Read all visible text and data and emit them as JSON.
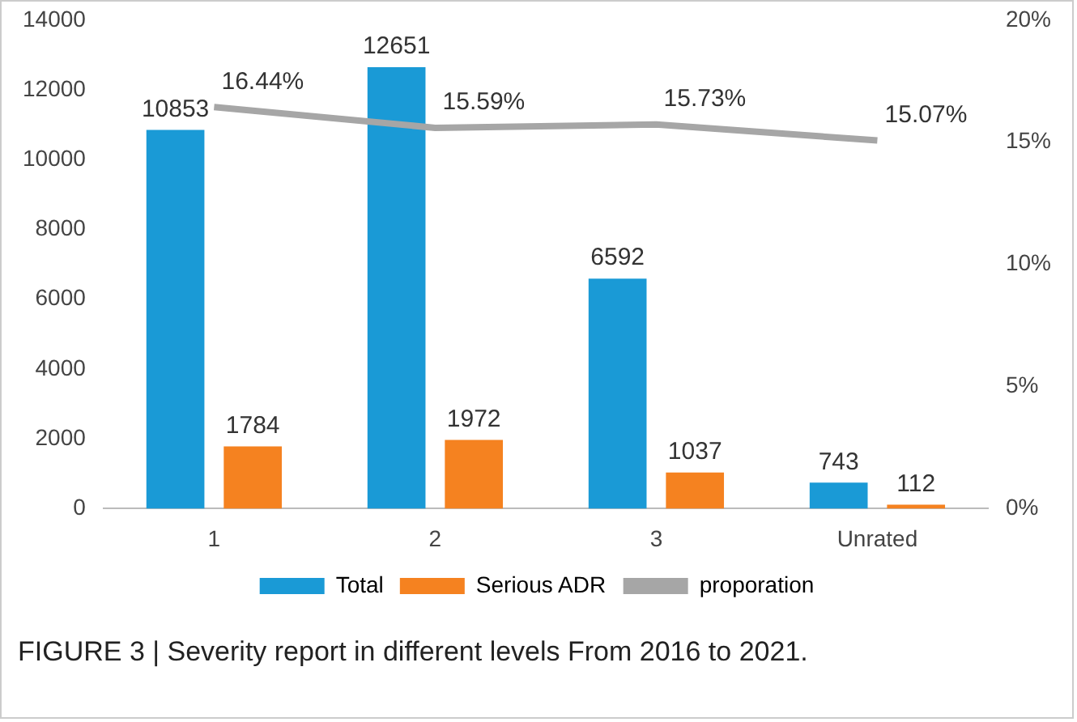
{
  "chart_data": {
    "type": "bar",
    "categories": [
      "1",
      "2",
      "3",
      "Unrated"
    ],
    "series": [
      {
        "name": "Total",
        "color": "#1a9ad6",
        "values": [
          10853,
          12651,
          6592,
          743
        ],
        "value_labels": [
          "10853",
          "12651",
          "6592",
          "743"
        ]
      },
      {
        "name": "Serious ADR",
        "color": "#f58220",
        "values": [
          1784,
          1972,
          1037,
          112
        ],
        "value_labels": [
          "1784",
          "1972",
          "1037",
          "112"
        ]
      },
      {
        "name": "proporation",
        "type": "line",
        "axis": "y2",
        "color": "#a6a6a6",
        "values": [
          16.44,
          15.59,
          15.73,
          15.07
        ],
        "value_labels": [
          "16.44%",
          "15.59%",
          "15.73%",
          "15.07%"
        ]
      }
    ],
    "ylim": [
      0,
      14000
    ],
    "yticks": [
      0,
      2000,
      4000,
      6000,
      8000,
      10000,
      12000,
      14000
    ],
    "y2lim": [
      0,
      20
    ],
    "y2ticks": [
      {
        "value": 0,
        "label": "0%"
      },
      {
        "value": 5,
        "label": "5%"
      },
      {
        "value": 10,
        "label": "10%"
      },
      {
        "value": 15,
        "label": "15%"
      },
      {
        "value": 20,
        "label": "20%"
      }
    ],
    "grid": false,
    "legend": "bottom",
    "marker": "none",
    "line_style": "solid",
    "annotations": [
      "FIGURE 3 | Severity report in different levels From 2016 to 2021."
    ]
  }
}
